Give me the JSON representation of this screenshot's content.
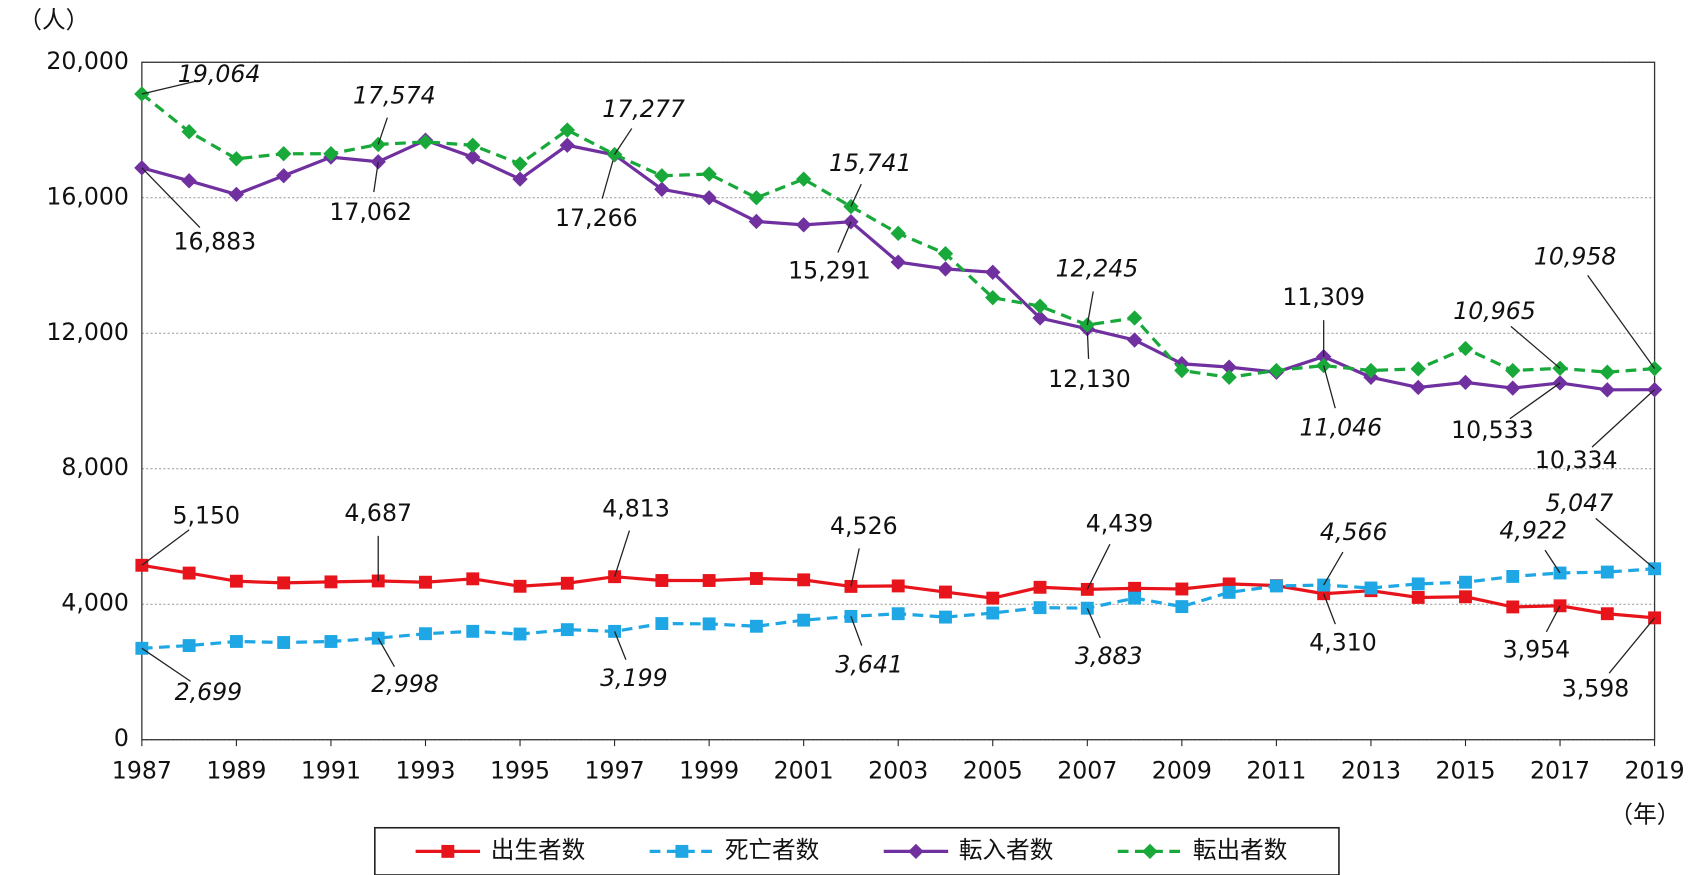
{
  "chart_data": {
    "type": "line",
    "y_unit": "（人）",
    "x_unit": "（年）",
    "x": [
      1987,
      1988,
      1989,
      1990,
      1991,
      1992,
      1993,
      1994,
      1995,
      1996,
      1997,
      1998,
      1999,
      2000,
      2001,
      2002,
      2003,
      2004,
      2005,
      2006,
      2007,
      2008,
      2009,
      2010,
      2011,
      2012,
      2013,
      2014,
      2015,
      2016,
      2017,
      2018,
      2019
    ],
    "xlim": [
      1987,
      2019
    ],
    "xticks": [
      1987,
      1989,
      1991,
      1993,
      1995,
      1997,
      1999,
      2001,
      2003,
      2005,
      2007,
      2009,
      2011,
      2013,
      2015,
      2017,
      2019
    ],
    "ylim": [
      0,
      20000
    ],
    "yticks": [
      0,
      {
        "value": 4000,
        "label": "4,000"
      },
      {
        "value": 8000,
        "label": "8,000"
      },
      {
        "value": 12000,
        "label": "12,000"
      },
      {
        "value": 16000,
        "label": "16,000"
      },
      {
        "value": 20000,
        "label": "20,000"
      }
    ],
    "grid": true,
    "legend": "bottom",
    "series": [
      {
        "name": "出生者数",
        "color": "#e8141b",
        "marker": "square",
        "dashed": false,
        "values": [
          5150,
          4920,
          4680,
          4630,
          4660,
          4687,
          4650,
          4750,
          4530,
          4620,
          4813,
          4700,
          4700,
          4760,
          4720,
          4526,
          4540,
          4360,
          4180,
          4500,
          4439,
          4470,
          4450,
          4600,
          4550,
          4310,
          4400,
          4200,
          4220,
          3920,
          3954,
          3720,
          3598
        ],
        "value_labels": [
          "5,150",
          null,
          null,
          null,
          null,
          "4,687",
          null,
          null,
          null,
          null,
          "4,813",
          null,
          null,
          null,
          null,
          "4,526",
          null,
          null,
          null,
          null,
          "4,439",
          null,
          null,
          null,
          null,
          "4,310",
          null,
          null,
          null,
          null,
          "3,954",
          null,
          "3,598"
        ]
      },
      {
        "name": "死亡者数",
        "color": "#1ea7e4",
        "marker": "square",
        "dashed": true,
        "values": [
          2699,
          2780,
          2900,
          2870,
          2900,
          2998,
          3130,
          3200,
          3120,
          3250,
          3199,
          3430,
          3420,
          3350,
          3530,
          3641,
          3720,
          3620,
          3740,
          3900,
          3883,
          4180,
          3930,
          4350,
          4540,
          4566,
          4480,
          4600,
          4650,
          4820,
          4922,
          4950,
          5047
        ],
        "value_labels": [
          "2,699",
          null,
          null,
          null,
          null,
          "2,998",
          null,
          null,
          null,
          null,
          "3,199",
          null,
          null,
          null,
          null,
          "3,641",
          null,
          null,
          null,
          null,
          "3,883",
          null,
          null,
          null,
          null,
          "4,566",
          null,
          null,
          null,
          null,
          "4,922",
          null,
          "5,047"
        ]
      },
      {
        "name": "転入者数",
        "color": "#7030a0",
        "marker": "diamond",
        "dashed": false,
        "values": [
          16883,
          16500,
          16100,
          16650,
          17200,
          17062,
          17700,
          17200,
          16550,
          17550,
          17266,
          16250,
          16000,
          15300,
          15200,
          15291,
          14100,
          13900,
          13800,
          12450,
          12130,
          11800,
          11100,
          11000,
          10850,
          11309,
          10700,
          10400,
          10550,
          10380,
          10533,
          10330,
          10334
        ],
        "value_labels": [
          "16,883",
          null,
          null,
          null,
          null,
          "17,062",
          null,
          null,
          null,
          null,
          "17,266",
          null,
          null,
          null,
          null,
          "15,291",
          null,
          null,
          null,
          null,
          "12,130",
          null,
          null,
          null,
          null,
          "11,309",
          null,
          null,
          null,
          null,
          "10,533",
          null,
          "10,334"
        ]
      },
      {
        "name": "転出者数",
        "color": "#19a83a",
        "marker": "diamond",
        "dashed": true,
        "values": [
          19064,
          17950,
          17150,
          17300,
          17300,
          17574,
          17650,
          17550,
          17000,
          18000,
          17277,
          16650,
          16700,
          16000,
          16550,
          15741,
          14950,
          14350,
          13050,
          12800,
          12245,
          12450,
          10900,
          10700,
          10900,
          11046,
          10900,
          10950,
          11550,
          10900,
          10965,
          10850,
          10958
        ],
        "value_labels": [
          "19,064",
          null,
          null,
          null,
          null,
          "17,574",
          null,
          null,
          null,
          null,
          "17,277",
          null,
          null,
          null,
          null,
          "15,741",
          null,
          null,
          null,
          null,
          "12,245",
          null,
          null,
          null,
          null,
          "11,046",
          null,
          null,
          null,
          null,
          "10,965",
          null,
          "10,958"
        ]
      }
    ]
  }
}
